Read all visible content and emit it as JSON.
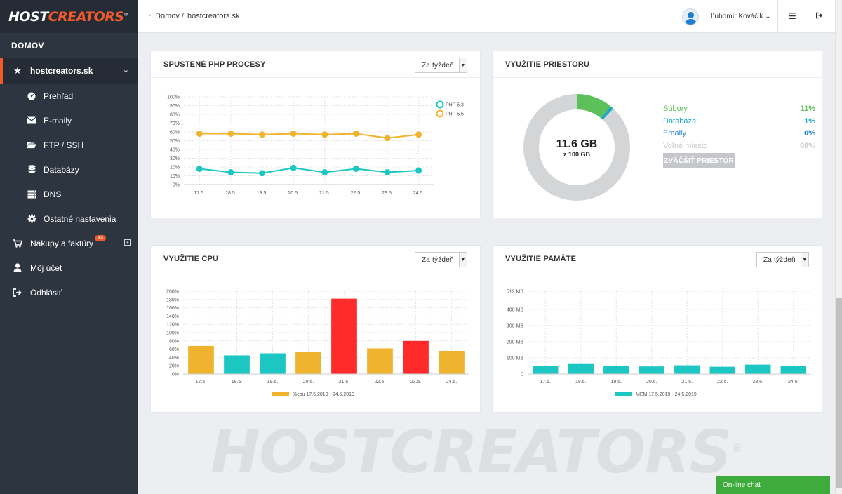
{
  "brand": {
    "part1": "HOST",
    "part2": "CREATORS",
    "reg": "®"
  },
  "sidebar": {
    "section": "DOMOV",
    "domain": "hostcreators.sk",
    "subitems": [
      {
        "label": "Prehľad",
        "icon": "dashboard-icon"
      },
      {
        "label": "E-maily",
        "icon": "envelope-icon"
      },
      {
        "label": "FTP / SSH",
        "icon": "folder-icon"
      },
      {
        "label": "Databázy",
        "icon": "database-icon"
      },
      {
        "label": "DNS",
        "icon": "server-icon"
      },
      {
        "label": "Ostatné nastavenia",
        "icon": "gear-icon"
      }
    ],
    "purchases": "Nákupy a faktúry",
    "purchases_badge": "33",
    "account": "Môj účet",
    "logout": "Odhlásiť"
  },
  "header": {
    "breadcrumb_home": "Domov",
    "breadcrumb_sep": "/",
    "breadcrumb_current": "hostcreators.sk",
    "user": "Ľubomír Kováčik"
  },
  "php_card": {
    "title": "SPUSTENÉ PHP PROCESY",
    "select": "Za týždeň",
    "chart_data": {
      "type": "line",
      "x": [
        "17.5.",
        "18.5.",
        "19.5.",
        "20.5.",
        "21.5.",
        "22.5.",
        "23.5.",
        "24.5."
      ],
      "y_ticks": [
        "100%",
        "90%",
        "80%",
        "70%",
        "60%",
        "50%",
        "40%",
        "30%",
        "20%",
        "10%",
        "0%"
      ],
      "ylim": [
        0,
        100
      ],
      "legend_position": "top-right",
      "series": [
        {
          "name": "PHP 5.3",
          "color": "#1cc7c3",
          "values": [
            18,
            14,
            13,
            19,
            14,
            18,
            14,
            16
          ]
        },
        {
          "name": "PHP 5.5",
          "color": "#f0b32d",
          "values": [
            58,
            58,
            57,
            58,
            57,
            58,
            53,
            57
          ]
        }
      ]
    }
  },
  "storage_card": {
    "title": "VYUŽITIE PRIESTORU",
    "used": "11.6 GB",
    "total": "z 100 GB",
    "rows": [
      {
        "label": "Súbory",
        "value": "11%",
        "color": "#5cc15a",
        "fraction": 0.11
      },
      {
        "label": "Databáza",
        "value": "1%",
        "color": "#19a9c6",
        "fraction": 0.01
      },
      {
        "label": "Emaily",
        "value": "0%",
        "color": "#1f7fd1",
        "fraction": 0.0
      },
      {
        "label": "Voľné miesto",
        "value": "88%",
        "color": "#c9cbcd",
        "fraction": 0.88
      }
    ],
    "button": "ZVÄČŠIŤ PRIESTOR"
  },
  "cpu_card": {
    "title": "VYUŽITIE CPU",
    "select": "Za týždeň",
    "chart_data": {
      "type": "bar",
      "categories": [
        "17.5.",
        "18.5.",
        "19.5.",
        "20.5.",
        "21.5.",
        "22.5.",
        "23.5.",
        "24.5."
      ],
      "y_ticks": [
        "200%",
        "180%",
        "160%",
        "140%",
        "120%",
        "100%",
        "80%",
        "60%",
        "40%",
        "20%",
        "0%"
      ],
      "ylim": [
        0,
        200
      ],
      "legend": "%cpu 17.5.2019 - 24.5.2019",
      "legend_color": "#f0b32d",
      "values": [
        68,
        45,
        50,
        53,
        182,
        62,
        80,
        56
      ],
      "colors": [
        "#f0b32d",
        "#1cc7c3",
        "#1cc7c3",
        "#f0b32d",
        "#ff2b2b",
        "#f0b32d",
        "#ff2b2b",
        "#f0b32d"
      ]
    }
  },
  "mem_card": {
    "title": "VYUŽITIE PAMÄTE",
    "select": "Za týždeň",
    "chart_data": {
      "type": "bar",
      "categories": [
        "17.5.",
        "18.5.",
        "19.5.",
        "20.5.",
        "21.5.",
        "22.5.",
        "23.5.",
        "24.5."
      ],
      "y_ticks": [
        "512 MB",
        "400 MB",
        "300 MB",
        "200 MB",
        "100 MB",
        "0"
      ],
      "y_tick_values": [
        512,
        400,
        300,
        200,
        100,
        0
      ],
      "ylim": [
        0,
        512
      ],
      "legend": "MEM 17.5.2019 - 24.5.2019",
      "legend_color": "#1cc7c3",
      "values": [
        48,
        62,
        52,
        47,
        54,
        45,
        58,
        50
      ],
      "color": "#1cc7c3"
    }
  },
  "watermark": {
    "text": "HOSTCREATORS",
    "reg": "®"
  },
  "chat": "On-line chat"
}
